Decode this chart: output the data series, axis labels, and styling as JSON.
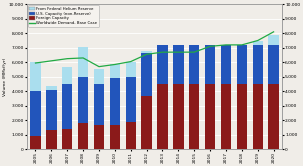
{
  "years": [
    2005,
    2006,
    2007,
    2008,
    2009,
    2010,
    2011,
    2012,
    2013,
    2014,
    2015,
    2016,
    2017,
    2018,
    2019,
    2020
  ],
  "foreign_capacity": [
    900,
    1350,
    1400,
    1800,
    1700,
    1700,
    1900,
    3700,
    4500,
    4500,
    4500,
    4500,
    4500,
    4500,
    4500,
    4500
  ],
  "us_capacity": [
    3100,
    2750,
    3100,
    3200,
    2800,
    3200,
    3100,
    2950,
    2700,
    2700,
    2700,
    2700,
    2700,
    2700,
    2700,
    2700
  ],
  "federal_reserve": [
    2000,
    300,
    1200,
    2050,
    1050,
    950,
    1000,
    100,
    0,
    0,
    0,
    0,
    0,
    0,
    300,
    650
  ],
  "demand": [
    5950,
    6100,
    6250,
    6300,
    5700,
    5850,
    6050,
    6550,
    6700,
    6700,
    6700,
    7100,
    7200,
    7200,
    7500,
    8100
  ],
  "color_foreign": "#8b1a1a",
  "color_us": "#2255bb",
  "color_reserve": "#aadeee",
  "color_demand": "#22aa44",
  "ylabel": "Volume (MMcf/yr)",
  "ylim": [
    0,
    10000
  ],
  "yticks": [
    0,
    1000,
    2000,
    3000,
    4000,
    5000,
    6000,
    7000,
    8000,
    9000,
    10000
  ],
  "ytick_labels": [
    "0",
    "1.000",
    "2.000",
    "3.000",
    "4.000",
    "5.000",
    "6.000",
    "7.000",
    "8.000",
    "9.000",
    "10.000"
  ],
  "legend_labels": [
    "From Federal Helium Reserve",
    "U.S. Capacity (non-Reserve)",
    "Foreign Capacity",
    "Worldwide Demand, Base Case"
  ],
  "bar_width": 0.65,
  "bg_color": "#f0ede8",
  "grid_color": "#ffffff"
}
